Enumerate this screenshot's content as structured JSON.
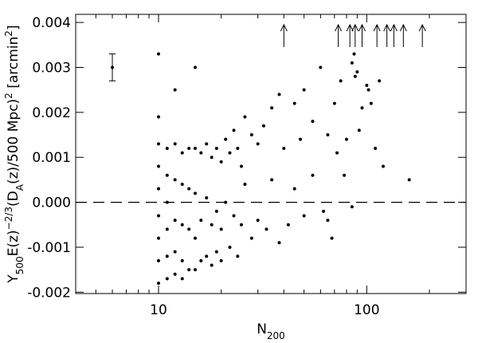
{
  "chart_data": {
    "type": "scatter",
    "xlabel": [
      "N",
      "200"
    ],
    "ylabel": [
      "Y",
      "500",
      "E(z)",
      "−2/3",
      "(D",
      "A",
      "(z)/500 Mpc)",
      "2",
      " [arcmin",
      "2",
      "]"
    ],
    "xlog": true,
    "xlim": [
      4,
      300
    ],
    "xticks": [
      10,
      100
    ],
    "xminorticks": [
      5,
      6,
      7,
      8,
      9,
      20,
      30,
      40,
      50,
      60,
      70,
      80,
      90,
      200,
      300
    ],
    "ylim": [
      -0.00203,
      0.00418
    ],
    "yticks": [
      {
        "value": -0.002,
        "label": "-0.002"
      },
      {
        "value": -0.001,
        "label": "-0.001"
      },
      {
        "value": 0,
        "label": "0.000"
      },
      0.001,
      0.002,
      0.003,
      0.004
    ],
    "hline": 0,
    "color": "#000000",
    "x": [
      10,
      10,
      10,
      10,
      10,
      10,
      10,
      10,
      10,
      11,
      11,
      11,
      11,
      11,
      11,
      12,
      12,
      12,
      12,
      12,
      12,
      13,
      13,
      13,
      13,
      13,
      14,
      14,
      14,
      14,
      15,
      15,
      15,
      15,
      15,
      16,
      16,
      16,
      17,
      17,
      17,
      18,
      18,
      18,
      19,
      19,
      19,
      20,
      20,
      20,
      21,
      21,
      22,
      22,
      23,
      23,
      24,
      24,
      25,
      25,
      26,
      26,
      28,
      28,
      30,
      30,
      32,
      33,
      35,
      35,
      38,
      38,
      40,
      42,
      45,
      45,
      48,
      50,
      50,
      55,
      55,
      60,
      62,
      65,
      68,
      70,
      72,
      75,
      78,
      80,
      85,
      87,
      88,
      90,
      92,
      95,
      100,
      102,
      105,
      110,
      115,
      120,
      160,
      85,
      65
    ],
    "values": [
      0.0013,
      0.0008,
      0.0003,
      -0.0003,
      -0.0008,
      -0.0013,
      -0.0018,
      0.0033,
      0.0019,
      0.0012,
      0.0006,
      0,
      -0.0006,
      -0.0012,
      -0.0017,
      0.0013,
      0.0005,
      -0.0004,
      -0.0011,
      -0.0016,
      0.0025,
      0.0011,
      0.0004,
      -0.0005,
      -0.0013,
      -0.0017,
      0.0012,
      0.0003,
      -0.0006,
      -0.0015,
      0.0012,
      0.0002,
      -0.0008,
      -0.0015,
      0.003,
      0.0011,
      -0.0004,
      -0.0013,
      0.0013,
      0.0001,
      -0.0012,
      0.001,
      -0.0005,
      -0.0014,
      0.0012,
      -0.0002,
      -0.0011,
      0.0009,
      -0.0006,
      -0.0013,
      0.0014,
      0,
      0.0011,
      -0.001,
      0.0016,
      -0.0003,
      0.0012,
      -0.0012,
      0.0008,
      -0.0005,
      0.0019,
      0.0004,
      0.0015,
      -0.0008,
      0.0013,
      -0.0004,
      0.0017,
      -0.0006,
      0.0021,
      0.0005,
      0.0024,
      -0.0009,
      0.0012,
      -0.0005,
      0.0022,
      0.0003,
      0.0014,
      0.0025,
      -0.0003,
      0.0018,
      0.0006,
      0.003,
      -0.0002,
      0.0015,
      -0.0008,
      0.0022,
      0.0011,
      0.0027,
      0.0006,
      0.0014,
      0.0031,
      0.0033,
      0.0028,
      0.0029,
      0.0016,
      0.0021,
      0.0026,
      0.0025,
      0.0022,
      0.0012,
      0.0027,
      0.0008,
      0.0005,
      -0.0001,
      -0.0004
    ],
    "errorbar": {
      "x": 6,
      "value": 0.003,
      "error": 0.0003
    },
    "upper_limits": {
      "x": [
        40,
        73,
        83,
        88,
        95,
        112,
        125,
        135,
        150,
        185
      ],
      "values": [
        0.0037,
        0.0037,
        0.0037,
        0.0037,
        0.0037,
        0.0037,
        0.0037,
        0.0037,
        0.0037,
        0.0037
      ]
    }
  }
}
